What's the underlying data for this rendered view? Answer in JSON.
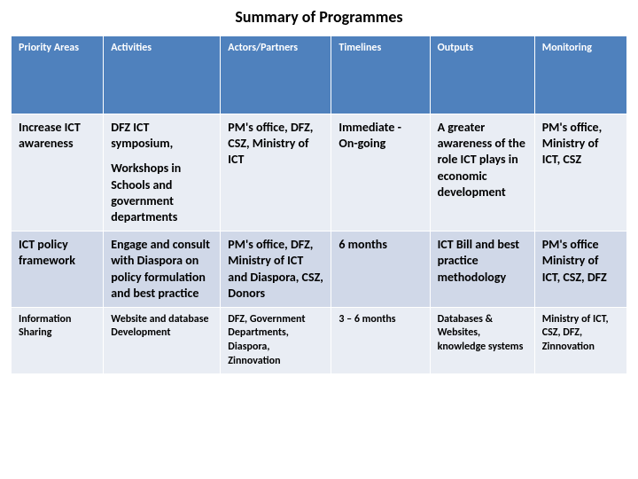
{
  "title": "Summary of Programmes",
  "table": {
    "header_bg": "#4f81bd",
    "header_color": "#ffffff",
    "row_alt_bg": "#e9edf4",
    "row_bg": "#d0d8e8",
    "columns": [
      "Priority Areas",
      "Activities",
      "Actors/Partners",
      "Timelines",
      "Outputs",
      "Monitoring"
    ],
    "rows": [
      {
        "small": false,
        "cells": [
          "Increase ICT awareness",
          "DFZ ICT symposium,",
          "PM's office, DFZ, CSZ, Ministry of ICT",
          "Immediate - On-going",
          "A greater awareness of the role ICT plays in economic development",
          "PM's office, Ministry of ICT, CSZ"
        ],
        "cells_extra": [
          "",
          "Workshops in Schools and government departments",
          "",
          "",
          "",
          ""
        ]
      },
      {
        "small": false,
        "cells": [
          "ICT policy framework",
          "Engage and consult with Diaspora on policy formulation and best practice",
          "PM's office, DFZ, Ministry of ICT and Diaspora, CSZ, Donors",
          "6 months",
          "ICT Bill and best practice methodology",
          "PM's office Ministry of ICT, CSZ, DFZ"
        ],
        "cells_extra": [
          "",
          "",
          "",
          "",
          "",
          ""
        ]
      },
      {
        "small": true,
        "cells": [
          "Information Sharing",
          "Website and database Development",
          "DFZ, Government Departments, Diaspora, Zinnovation",
          "3 – 6 months",
          "Databases & Websites, knowledge systems",
          "Ministry of ICT, CSZ, DFZ, Zinnovation"
        ],
        "cells_extra": [
          "",
          "",
          "",
          "",
          "",
          ""
        ]
      }
    ]
  }
}
